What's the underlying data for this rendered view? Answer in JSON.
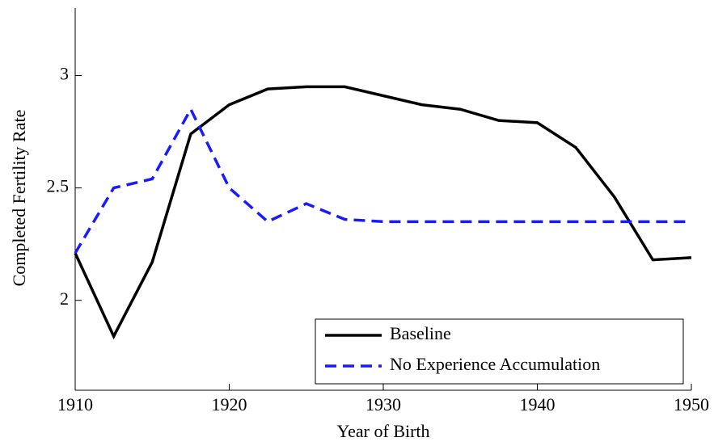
{
  "chart_data": {
    "type": "line",
    "xlabel": "Year of Birth",
    "ylabel": "Completed Fertility Rate",
    "x": [
      1910,
      1912.5,
      1915,
      1917.5,
      1920,
      1922.5,
      1925,
      1927.5,
      1930,
      1932.5,
      1935,
      1937.5,
      1940,
      1942.5,
      1945,
      1947.5,
      1950
    ],
    "series": [
      {
        "name": "Baseline",
        "color": "#000000",
        "dash": "solid",
        "values": [
          2.21,
          1.84,
          2.17,
          2.74,
          2.87,
          2.94,
          2.95,
          2.95,
          2.91,
          2.87,
          2.85,
          2.8,
          2.79,
          2.68,
          2.46,
          2.18,
          2.19
        ]
      },
      {
        "name": "No Experience Accumulation",
        "color": "#1a1aff",
        "dash": "dashed",
        "values": [
          2.21,
          2.5,
          2.54,
          2.85,
          2.5,
          2.35,
          2.43,
          2.36,
          2.35,
          2.35,
          2.35,
          2.35,
          2.35,
          2.35,
          2.35,
          2.35,
          2.35
        ]
      }
    ],
    "xlim": [
      1910,
      1950
    ],
    "xticks": [
      1910,
      1920,
      1930,
      1940,
      1950
    ],
    "ylim": [
      1.6,
      3.3
    ],
    "yticks": [
      2,
      2.5,
      3
    ],
    "legend": "lower right"
  }
}
